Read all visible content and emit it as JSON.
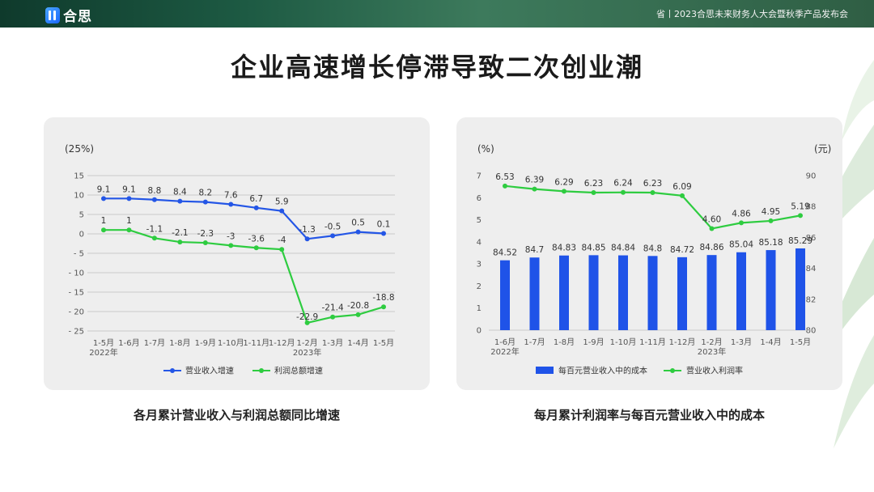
{
  "header": {
    "logo_text": "合思",
    "event_text": "省丨2023合思未来财务人大会暨秋季产品发布会"
  },
  "page_title": "企业高速增长停滞导致二次创业潮",
  "captions": {
    "left": "各月累计营业收入与利润总额同比增速",
    "right": "每月累计利润率与每百元营业收入中的成本"
  },
  "colors": {
    "blue": "#2456e6",
    "green": "#2ecc40",
    "bar": "#1f53e8"
  },
  "chart_data": [
    {
      "type": "line",
      "unit_left": "(25%)",
      "categories": [
        "1-5月",
        "1-6月",
        "1-7月",
        "1-8月",
        "1-9月",
        "1-10月",
        "1-11月",
        "1-12月",
        "1-2月",
        "1-3月",
        "1-4月",
        "1-5月"
      ],
      "year_labels": [
        {
          "index": 0,
          "text": "2022年"
        },
        {
          "index": 8,
          "text": "2023年"
        }
      ],
      "ylim": [
        -25,
        15
      ],
      "yticks": [
        15,
        10,
        5,
        0,
        -5,
        -10,
        -15,
        -20,
        -25
      ],
      "ytick_labels": [
        "15",
        "10",
        "5",
        "0",
        "- 5",
        "- 10",
        "- 15",
        "- 20",
        "- 25"
      ],
      "grid": true,
      "legend_position": "bottom",
      "series": [
        {
          "name": "营业收入增速",
          "color": "#2456e6",
          "values": [
            9.1,
            9.1,
            8.8,
            8.4,
            8.2,
            7.6,
            6.7,
            5.9,
            -1.3,
            -0.5,
            0.5,
            0.1
          ],
          "labels": [
            "9.1",
            "9.1",
            "8.8",
            "8.4",
            "8.2",
            "7.6",
            "6.7",
            "5.9",
            "-1.3",
            "-0.5",
            "0.5",
            "0.1"
          ]
        },
        {
          "name": "利润总额增速",
          "color": "#2ecc40",
          "values": [
            1,
            1,
            -1.1,
            -2.1,
            -2.3,
            -3,
            -3.6,
            -4,
            -22.9,
            -21.4,
            -20.8,
            -18.8
          ],
          "labels": [
            "1",
            "1",
            "-1.1",
            "-2.1",
            "-2.3",
            "-3",
            "-3.6",
            "-4",
            "-22.9",
            "-21.4",
            "-20.8",
            "-18.8"
          ]
        }
      ]
    },
    {
      "type": "bar",
      "unit_left": "(%)",
      "unit_right": "(元)",
      "categories": [
        "1-6月",
        "1-7月",
        "1-8月",
        "1-9月",
        "1-10月",
        "1-11月",
        "1-12月",
        "1-2月",
        "1-3月",
        "1-4月",
        "1-5月"
      ],
      "year_labels": [
        {
          "index": 0,
          "text": "2022年"
        },
        {
          "index": 7,
          "text": "2023年"
        }
      ],
      "ylim_left": [
        0,
        7
      ],
      "yticks_left": [
        0,
        1,
        2,
        3,
        4,
        5,
        6,
        7
      ],
      "ylim_right": [
        80,
        90
      ],
      "yticks_right": [
        80,
        82,
        84,
        86,
        88,
        90
      ],
      "legend_position": "bottom",
      "series": [
        {
          "name": "每百元营业收入中的成本",
          "type": "bar",
          "axis": "right",
          "color": "#1f53e8",
          "values": [
            84.52,
            84.7,
            84.83,
            84.85,
            84.84,
            84.8,
            84.72,
            84.86,
            85.04,
            85.18,
            85.29
          ],
          "labels": [
            "84.52",
            "84.7",
            "84.83",
            "84.85",
            "84.84",
            "84.8",
            "84.72",
            "84.86",
            "85.04",
            "85.18",
            "85.29"
          ]
        },
        {
          "name": "营业收入利润率",
          "type": "line",
          "axis": "left",
          "color": "#2ecc40",
          "values": [
            6.53,
            6.39,
            6.29,
            6.23,
            6.24,
            6.23,
            6.09,
            4.6,
            4.86,
            4.95,
            5.19
          ],
          "labels": [
            "6.53",
            "6.39",
            "6.29",
            "6.23",
            "6.24",
            "6.23",
            "6.09",
            "4.60",
            "4.86",
            "4.95",
            "5.19"
          ]
        }
      ]
    }
  ]
}
